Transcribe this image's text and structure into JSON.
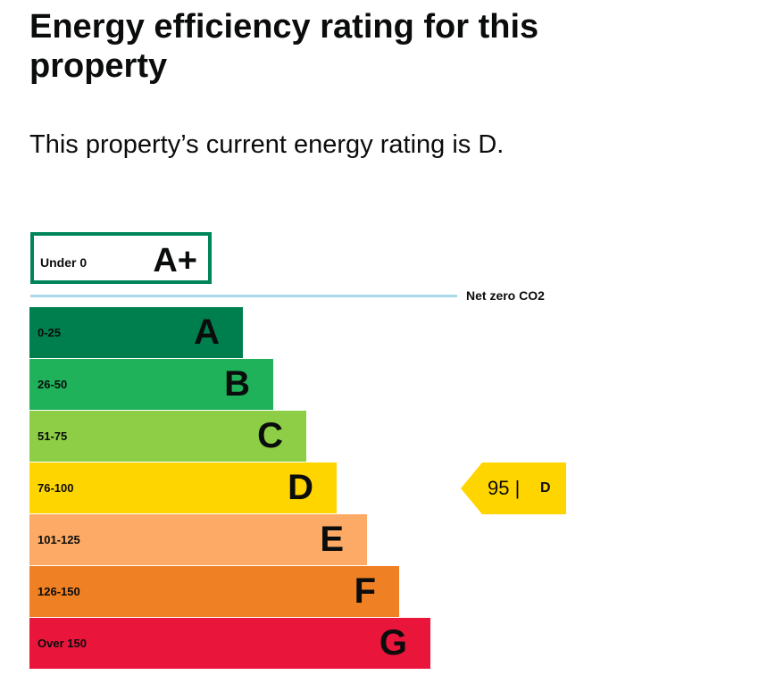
{
  "heading": "Energy efficiency rating for this property",
  "summary": "This property’s current energy rating is D.",
  "chart_data": {
    "type": "bar",
    "aplus": {
      "range": "Under 0",
      "letter": "A+",
      "color": "#00855a"
    },
    "net_zero_label": "Net zero CO2",
    "bands": [
      {
        "letter": "A",
        "range": "0-25",
        "color": "#007f4e"
      },
      {
        "letter": "B",
        "range": "26-50",
        "color": "#1fb25a"
      },
      {
        "letter": "C",
        "range": "51-75",
        "color": "#8dce46"
      },
      {
        "letter": "D",
        "range": "76-100",
        "color": "#ffd500"
      },
      {
        "letter": "E",
        "range": "101-125",
        "color": "#fcaa65"
      },
      {
        "letter": "F",
        "range": "126-150",
        "color": "#ef8023"
      },
      {
        "letter": "G",
        "range": "Over 150",
        "color": "#e9153b"
      }
    ],
    "current": {
      "score": "95 |",
      "rating": "D",
      "band": "D",
      "color": "#ffd500"
    }
  }
}
